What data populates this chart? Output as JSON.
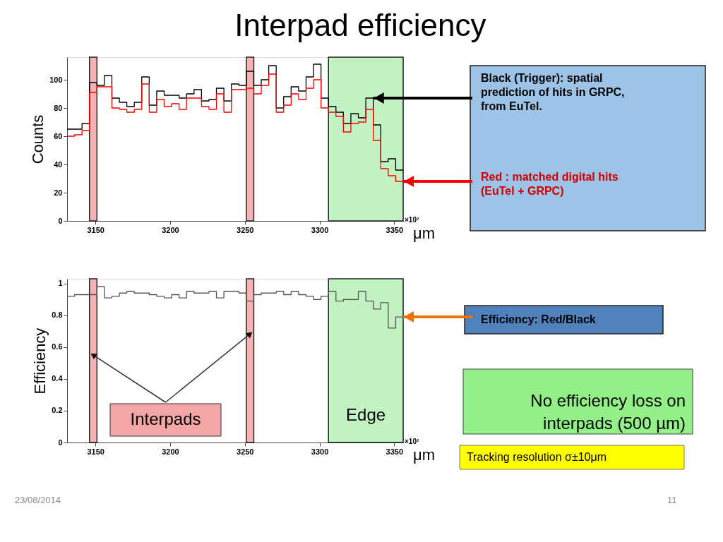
{
  "chart_data": [
    {
      "type": "histogram",
      "title": "Interpad efficiency",
      "ylabel": "Counts",
      "xlabel": "μm",
      "bins": [
        3131,
        3136,
        3141,
        3146,
        3151,
        3156,
        3161,
        3166,
        3171,
        3176,
        3181,
        3186,
        3191,
        3196,
        3201,
        3206,
        3211,
        3216,
        3221,
        3226,
        3231,
        3236,
        3241,
        3246,
        3251,
        3256,
        3261,
        3266,
        3271,
        3276,
        3281,
        3286,
        3291,
        3296,
        3301,
        3306,
        3311,
        3316,
        3321,
        3326,
        3331,
        3336,
        3341,
        3346,
        3351,
        3356
      ],
      "series": [
        {
          "color": "#000000",
          "values": [
            65,
            65,
            69,
            98,
            96,
            103,
            87,
            84,
            81,
            84,
            102,
            82,
            92,
            89,
            89,
            87,
            90,
            93,
            85,
            86,
            94,
            85,
            97,
            96,
            106,
            96,
            100,
            110,
            80,
            88,
            95,
            92,
            102,
            111,
            87,
            81,
            77,
            69,
            76,
            73,
            87,
            68,
            42,
            44,
            36
          ]
        },
        {
          "color": "#ff0000",
          "values": [
            60,
            61,
            64,
            91,
            95,
            95,
            80,
            79,
            77,
            79,
            97,
            77,
            86,
            81,
            83,
            79,
            87,
            87,
            81,
            79,
            90,
            77,
            93,
            93,
            94,
            90,
            96,
            104,
            77,
            82,
            90,
            86,
            94,
            100,
            80,
            77,
            74,
            63,
            69,
            70,
            79,
            57,
            37,
            32,
            28
          ]
        }
      ],
      "xlim": [
        3131,
        3356
      ],
      "ylim": [
        0,
        116
      ],
      "xticks": [
        3150,
        3200,
        3250,
        3300,
        3350
      ],
      "yticks": [
        0,
        20,
        40,
        60,
        80,
        100
      ],
      "bands": [
        {
          "axis": "x",
          "from": 3146,
          "to": 3151,
          "color": "#f4a6a6"
        },
        {
          "axis": "x",
          "from": 3251,
          "to": 3256,
          "color": "#f4a6a6"
        },
        {
          "axis": "x",
          "from": 3306,
          "to": 3356,
          "color": "#b8f0b8"
        }
      ],
      "annotations": [
        {
          "text": "Black (Trigger): spatial prediction of hits in GRPC, from EuTel.",
          "x": 3336,
          "y": 87
        },
        {
          "text": "Red : matched digital hits (EuTel + GRPC)",
          "x": 3356,
          "y": 28
        },
        "×10²"
      ]
    },
    {
      "type": "histogram",
      "ylabel": "Efficiency",
      "xlabel": "μm",
      "bins": [
        3131,
        3136,
        3141,
        3146,
        3151,
        3156,
        3161,
        3166,
        3171,
        3176,
        3181,
        3186,
        3191,
        3196,
        3201,
        3206,
        3211,
        3216,
        3221,
        3226,
        3231,
        3236,
        3241,
        3246,
        3251,
        3256,
        3261,
        3266,
        3271,
        3276,
        3281,
        3286,
        3291,
        3296,
        3301,
        3306,
        3311,
        3316,
        3321,
        3326,
        3331,
        3336,
        3341,
        3346,
        3351,
        3356
      ],
      "color": "#555555",
      "values": [
        0.92,
        0.93,
        0.93,
        0.93,
        0.98,
        0.91,
        0.92,
        0.94,
        0.95,
        0.94,
        0.94,
        0.93,
        0.92,
        0.91,
        0.93,
        0.91,
        0.95,
        0.94,
        0.94,
        0.95,
        0.91,
        0.95,
        0.95,
        0.94,
        0.89,
        0.93,
        0.94,
        0.94,
        0.95,
        0.93,
        0.95,
        0.93,
        0.92,
        0.9,
        0.92,
        0.95,
        0.89,
        0.9,
        0.9,
        0.95,
        0.89,
        0.84,
        0.88,
        0.72,
        0.79
      ],
      "xlim": [
        3131,
        3356
      ],
      "ylim": [
        0,
        1.03
      ],
      "xticks": [
        3150,
        3200,
        3250,
        3300,
        3350
      ],
      "yticks": [
        0,
        0.2,
        0.4,
        0.6,
        0.8,
        1
      ],
      "bands": [
        {
          "axis": "x",
          "from": 3146,
          "to": 3151,
          "color": "#f4a6a6"
        },
        {
          "axis": "x",
          "from": 3251,
          "to": 3256,
          "color": "#f4a6a6"
        },
        {
          "axis": "x",
          "from": 3306,
          "to": 3356,
          "color": "#b8f0b8",
          "label": "Edge"
        }
      ],
      "annotations": [
        {
          "text": "Interpads",
          "x": 3148.5,
          "y": 0.55
        },
        {
          "text": "Efficiency: Red/Black",
          "x": 3356,
          "y": 0.79
        },
        "No efficiency loss on interpads (500 µm)",
        "Tracking resolution σ±10μm",
        "×10²",
        "23/08/2014",
        "11"
      ]
    }
  ]
}
